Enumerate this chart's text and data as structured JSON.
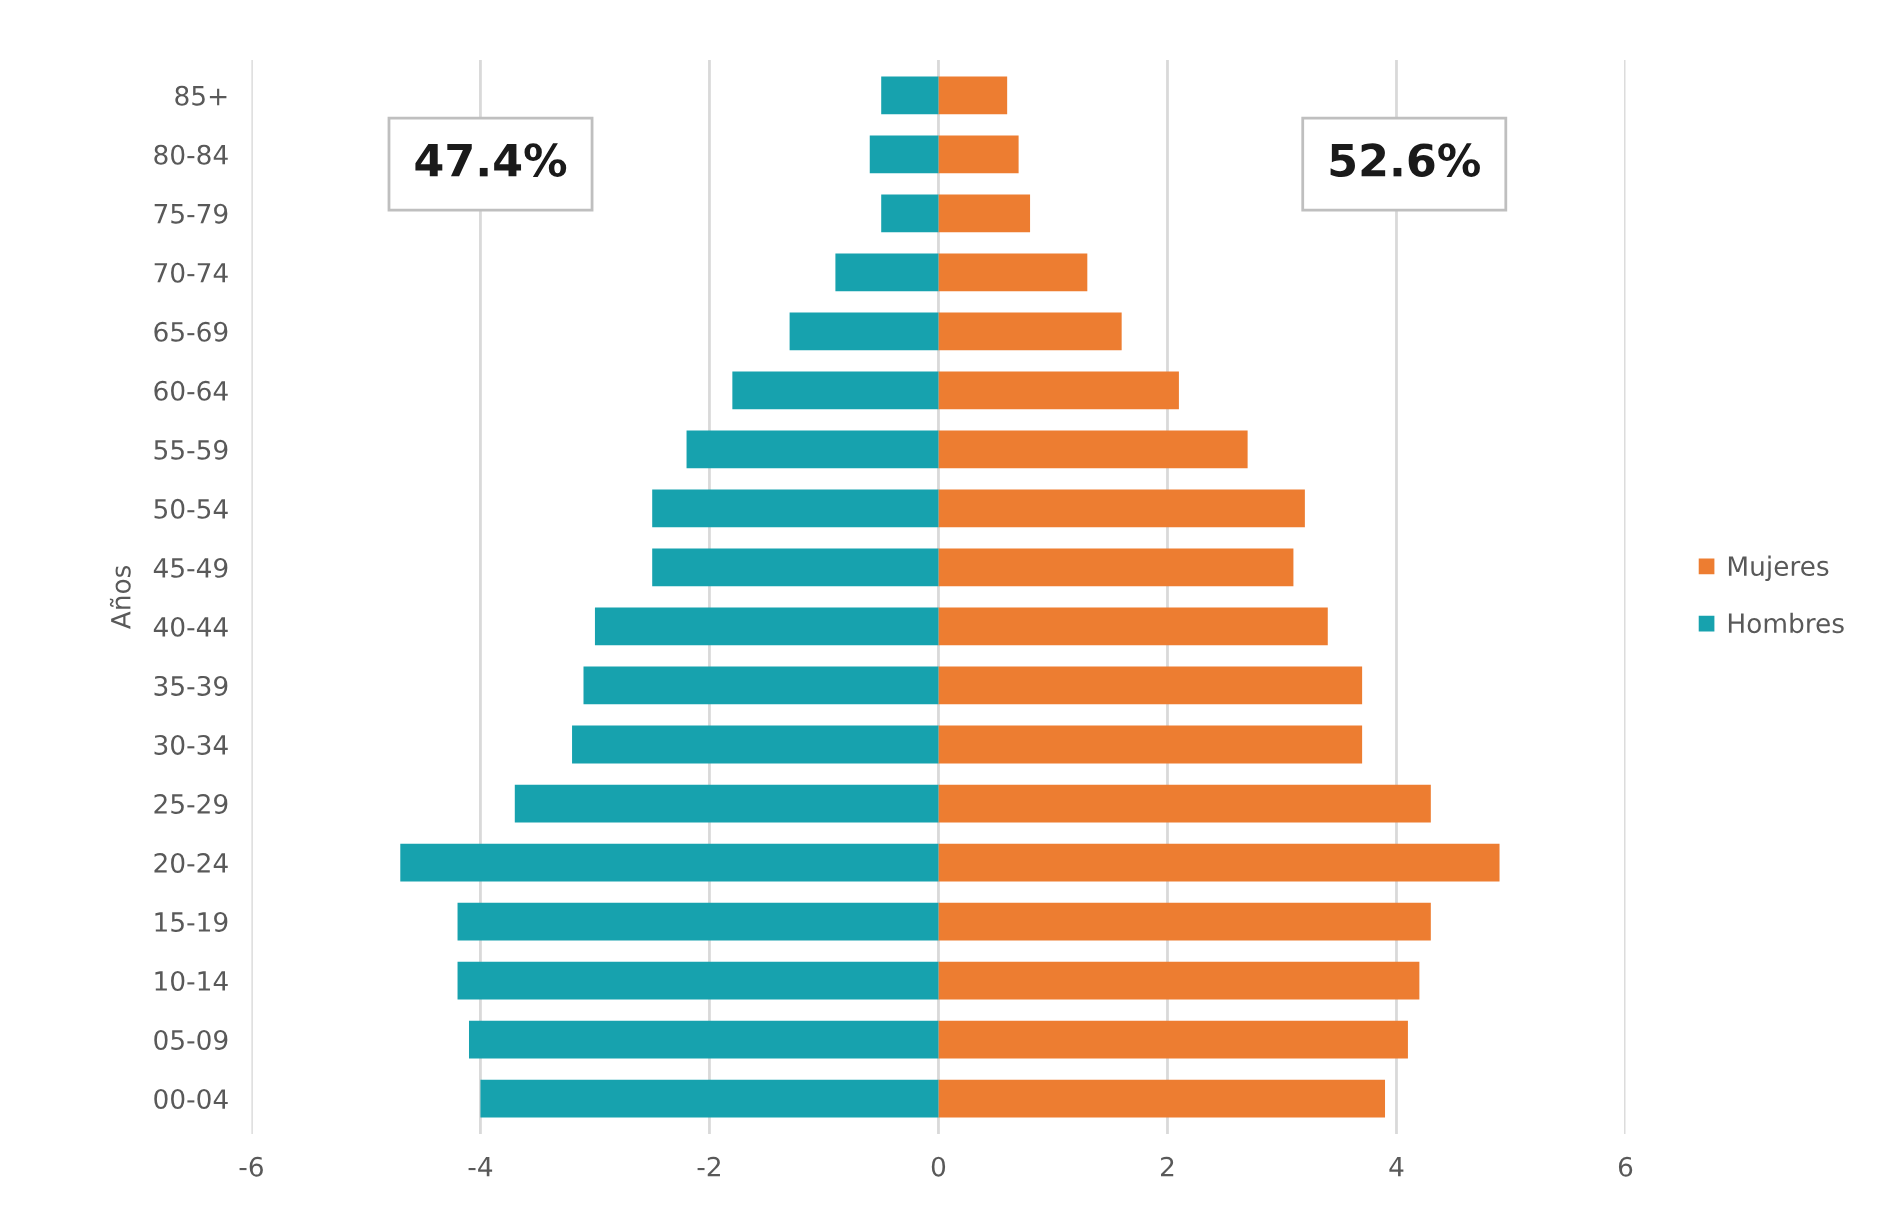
{
  "chart_data": {
    "type": "bar",
    "orientation": "horizontal",
    "stacked": true,
    "ylabel": "Años",
    "categories": [
      "85+",
      "80-84",
      "75-79",
      "70-74",
      "65-69",
      "60-64",
      "55-59",
      "50-54",
      "45-49",
      "40-44",
      "35-39",
      "30-34",
      "25-29",
      "20-24",
      "15-19",
      "10-14",
      "05-09",
      "00-04"
    ],
    "series": [
      {
        "name": "Mujeres",
        "color": "#ed7d31",
        "values": [
          0.6,
          0.7,
          0.8,
          1.3,
          1.6,
          2.1,
          2.7,
          3.2,
          3.1,
          3.4,
          3.7,
          3.7,
          4.3,
          4.9,
          4.3,
          4.2,
          4.1,
          3.9
        ]
      },
      {
        "name": "Hombres",
        "color": "#17a2ae",
        "values": [
          -0.5,
          -0.6,
          -0.5,
          -0.9,
          -1.3,
          -1.8,
          -2.2,
          -2.5,
          -2.5,
          -3.0,
          -3.1,
          -3.2,
          -3.7,
          -4.7,
          -4.2,
          -4.2,
          -4.1,
          -4.0
        ]
      }
    ],
    "xlim": [
      -6,
      6
    ],
    "xticks": [
      -6,
      -4,
      -2,
      0,
      2,
      4,
      6
    ],
    "grid": "x",
    "legend": "right",
    "annotations": [
      "47.4%",
      "52.6%"
    ]
  }
}
